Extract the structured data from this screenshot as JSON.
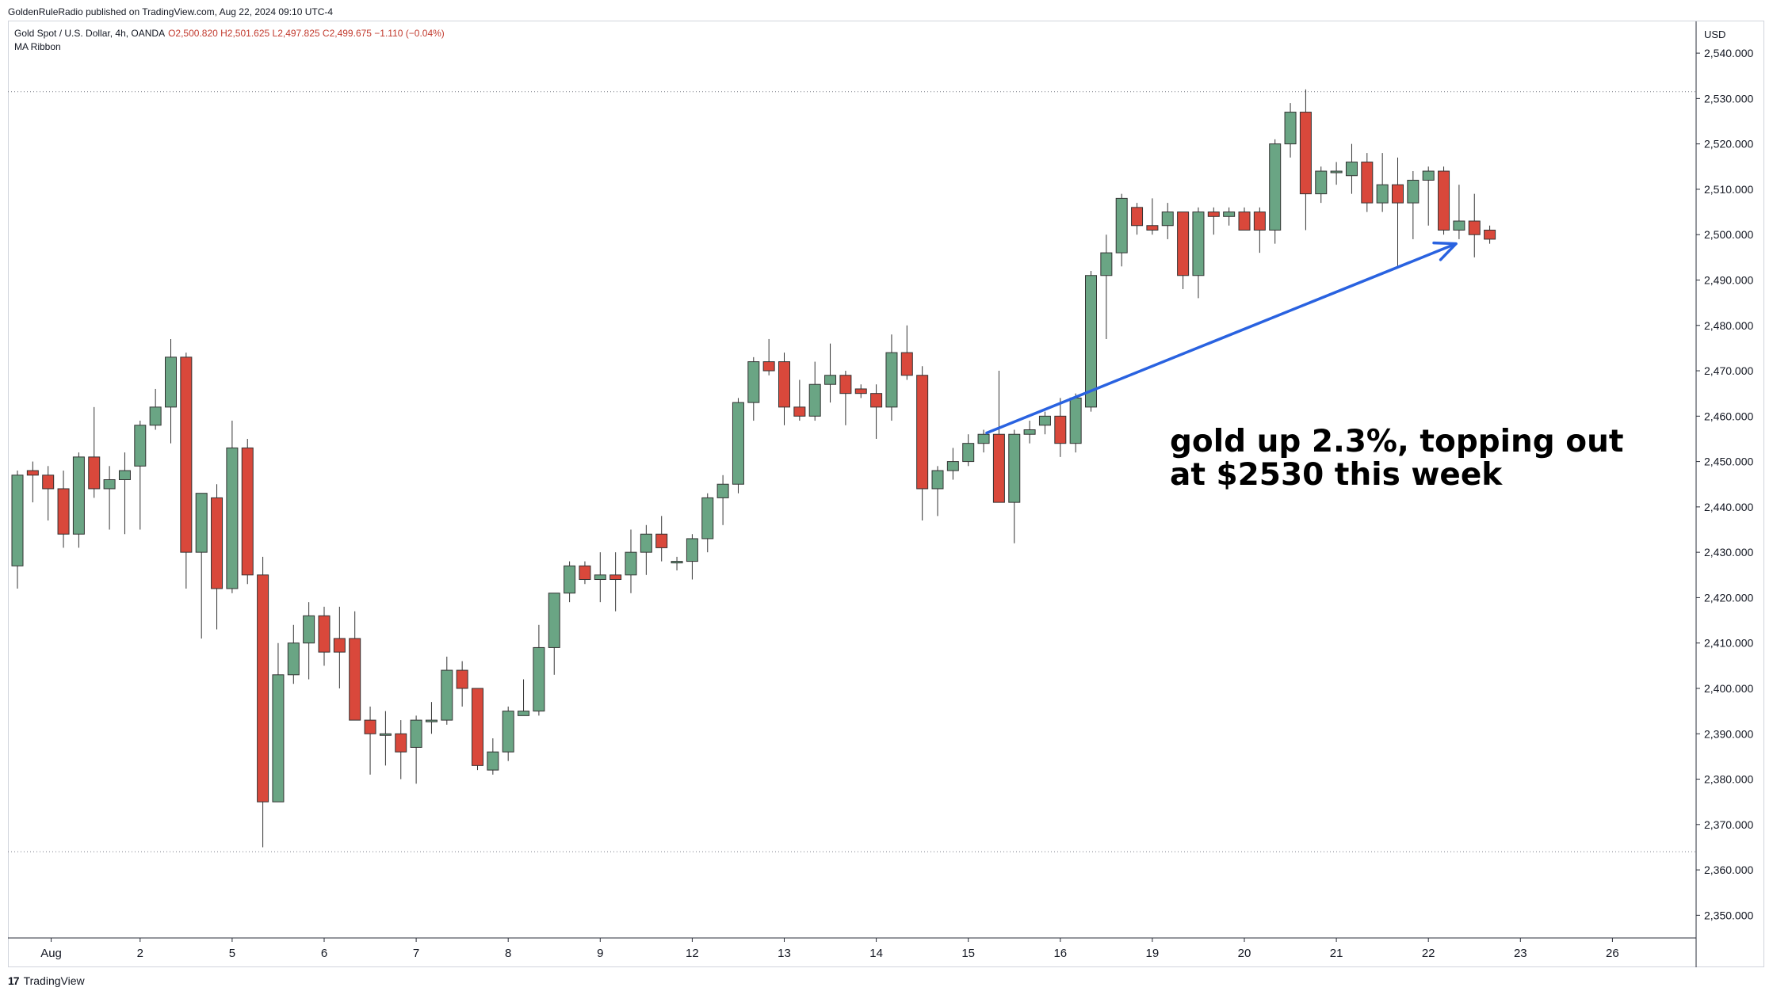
{
  "header": {
    "published_by": "GoldenRuleRadio published on TradingView.com, Aug 22, 2024 09:10 UTC-4"
  },
  "legend": {
    "symbol": "Gold Spot / U.S. Dollar, 4h, OANDA",
    "ohlc": "O2,500.820  H2,501.625  L2,497.825  C2,499.675  −1.110 (−0.04%)",
    "indicator": "MA Ribbon"
  },
  "price_axis": {
    "currency": "USD"
  },
  "annotation": {
    "line1": "gold up 2.3%, topping out",
    "line2": "at $2530 this week"
  },
  "footer": {
    "brand": "TradingView",
    "logo_glyph": "17"
  },
  "colors": {
    "up": "#6aa584",
    "down": "#d9483b",
    "arrow": "#2962e0",
    "grid_dotted": "#787b86"
  },
  "chart_data": {
    "type": "candlestick",
    "interval": "4h",
    "ylim": [
      2345,
      2547
    ],
    "horizontal_lines": [
      2531.5,
      2364
    ],
    "y_ticks": [
      2350,
      2360,
      2370,
      2380,
      2390,
      2400,
      2410,
      2420,
      2430,
      2440,
      2450,
      2460,
      2470,
      2480,
      2490,
      2500,
      2510,
      2520,
      2530,
      2540
    ],
    "x_labels": [
      {
        "label": "Aug",
        "index": 2.2
      },
      {
        "label": "2",
        "index": 8
      },
      {
        "label": "5",
        "index": 14
      },
      {
        "label": "6",
        "index": 20
      },
      {
        "label": "7",
        "index": 26
      },
      {
        "label": "8",
        "index": 32
      },
      {
        "label": "9",
        "index": 38
      },
      {
        "label": "12",
        "index": 44
      },
      {
        "label": "13",
        "index": 50
      },
      {
        "label": "14",
        "index": 56
      },
      {
        "label": "15",
        "index": 62
      },
      {
        "label": "16",
        "index": 68
      },
      {
        "label": "19",
        "index": 74
      },
      {
        "label": "20",
        "index": 80
      },
      {
        "label": "21",
        "index": 86
      },
      {
        "label": "22",
        "index": 92
      },
      {
        "label": "23",
        "index": 98
      },
      {
        "label": "26",
        "index": 104
      }
    ],
    "candles": [
      [
        2427,
        2448,
        2422,
        2447
      ],
      [
        2448,
        2450,
        2441,
        2447
      ],
      [
        2447,
        2449,
        2437,
        2444
      ],
      [
        2444,
        2448,
        2431,
        2434
      ],
      [
        2434,
        2452,
        2431,
        2451
      ],
      [
        2451,
        2462,
        2442,
        2444
      ],
      [
        2444,
        2449,
        2435,
        2446
      ],
      [
        2446,
        2452,
        2434,
        2448
      ],
      [
        2449,
        2459,
        2435,
        2458
      ],
      [
        2458,
        2466,
        2457,
        2462
      ],
      [
        2462,
        2477,
        2454,
        2473
      ],
      [
        2473,
        2474,
        2422,
        2430
      ],
      [
        2430,
        2442,
        2411,
        2443
      ],
      [
        2442,
        2445,
        2413,
        2422
      ],
      [
        2422,
        2459,
        2421,
        2453
      ],
      [
        2453,
        2455,
        2423,
        2425
      ],
      [
        2425,
        2429,
        2365,
        2375
      ],
      [
        2375,
        2410,
        2375,
        2403
      ],
      [
        2403,
        2414,
        2401,
        2410
      ],
      [
        2410,
        2419,
        2402,
        2416
      ],
      [
        2416,
        2418,
        2405,
        2408
      ],
      [
        2411,
        2418,
        2400,
        2408
      ],
      [
        2411,
        2417,
        2394,
        2393
      ],
      [
        2393,
        2396,
        2381,
        2390
      ],
      [
        2390,
        2395,
        2383,
        2390
      ],
      [
        2390,
        2393,
        2380,
        2386
      ],
      [
        2387,
        2394,
        2379,
        2393
      ],
      [
        2393,
        2397,
        2390,
        2393
      ],
      [
        2393,
        2407,
        2392,
        2404
      ],
      [
        2404,
        2406,
        2396,
        2400
      ],
      [
        2400,
        2400,
        2382,
        2383
      ],
      [
        2382,
        2389,
        2381,
        2386
      ],
      [
        2386,
        2396,
        2384,
        2395
      ],
      [
        2394,
        2402,
        2394,
        2395
      ],
      [
        2395,
        2414,
        2394,
        2409
      ],
      [
        2409,
        2421,
        2403,
        2421
      ],
      [
        2421,
        2428,
        2419,
        2427
      ],
      [
        2427,
        2428,
        2423,
        2424
      ],
      [
        2424,
        2430,
        2419,
        2425
      ],
      [
        2425,
        2430,
        2417,
        2424
      ],
      [
        2425,
        2435,
        2421,
        2430
      ],
      [
        2430,
        2436,
        2425,
        2434
      ],
      [
        2434,
        2438,
        2428,
        2431
      ],
      [
        2428,
        2429,
        2426,
        2428
      ],
      [
        2428,
        2434,
        2424,
        2433
      ],
      [
        2433,
        2443,
        2430,
        2442
      ],
      [
        2442,
        2447,
        2436,
        2445
      ],
      [
        2445,
        2464,
        2443,
        2463
      ],
      [
        2463,
        2473,
        2459,
        2472
      ],
      [
        2472,
        2477,
        2469,
        2470
      ],
      [
        2472,
        2474,
        2458,
        2462
      ],
      [
        2462,
        2468,
        2459,
        2460
      ],
      [
        2460,
        2472,
        2459,
        2467
      ],
      [
        2467,
        2476,
        2463,
        2469
      ],
      [
        2469,
        2470,
        2458,
        2465
      ],
      [
        2466,
        2467,
        2464,
        2465
      ],
      [
        2465,
        2467,
        2455,
        2462
      ],
      [
        2462,
        2478,
        2459,
        2474
      ],
      [
        2474,
        2480,
        2468,
        2469
      ],
      [
        2469,
        2471,
        2437,
        2444
      ],
      [
        2444,
        2449,
        2438,
        2448
      ],
      [
        2448,
        2453,
        2446,
        2450
      ],
      [
        2450,
        2456,
        2449,
        2454
      ],
      [
        2454,
        2457,
        2452,
        2456
      ],
      [
        2456,
        2470,
        2441,
        2441
      ],
      [
        2441,
        2457,
        2432,
        2456
      ],
      [
        2456,
        2459,
        2454,
        2457
      ],
      [
        2458,
        2461,
        2456,
        2460
      ],
      [
        2460,
        2464,
        2451,
        2454
      ],
      [
        2454,
        2465,
        2452,
        2464
      ],
      [
        2462,
        2492,
        2461,
        2491
      ],
      [
        2491,
        2500,
        2477,
        2496
      ],
      [
        2496,
        2509,
        2493,
        2508
      ],
      [
        2506,
        2507,
        2500,
        2502
      ],
      [
        2502,
        2508,
        2500,
        2501
      ],
      [
        2502,
        2507,
        2499,
        2505
      ],
      [
        2505,
        2505,
        2488,
        2491
      ],
      [
        2491,
        2506,
        2486,
        2505
      ],
      [
        2505,
        2506,
        2500,
        2504
      ],
      [
        2504,
        2506,
        2502,
        2505
      ],
      [
        2505,
        2506,
        2501,
        2501
      ],
      [
        2505,
        2506,
        2496,
        2501
      ],
      [
        2501,
        2521,
        2498,
        2520
      ],
      [
        2520,
        2529,
        2517,
        2527
      ],
      [
        2527,
        2532,
        2501,
        2509
      ],
      [
        2509,
        2515,
        2507,
        2514
      ],
      [
        2514,
        2516,
        2511,
        2514
      ],
      [
        2513,
        2520,
        2509,
        2516
      ],
      [
        2516,
        2518,
        2505,
        2507
      ],
      [
        2507,
        2518,
        2505,
        2511
      ],
      [
        2511,
        2517,
        2493,
        2507
      ],
      [
        2507,
        2514,
        2499,
        2512
      ],
      [
        2512,
        2515,
        2502,
        2514
      ],
      [
        2514,
        2515,
        2500,
        2501
      ],
      [
        2501,
        2511,
        2499,
        2503
      ],
      [
        2503,
        2509,
        2495,
        2500
      ],
      [
        2501,
        2502,
        2498,
        2499
      ]
    ],
    "arrow": {
      "from": {
        "index": 63.2,
        "price": 2456.3
      },
      "to": {
        "index": 93.8,
        "price": 2498
      }
    }
  }
}
